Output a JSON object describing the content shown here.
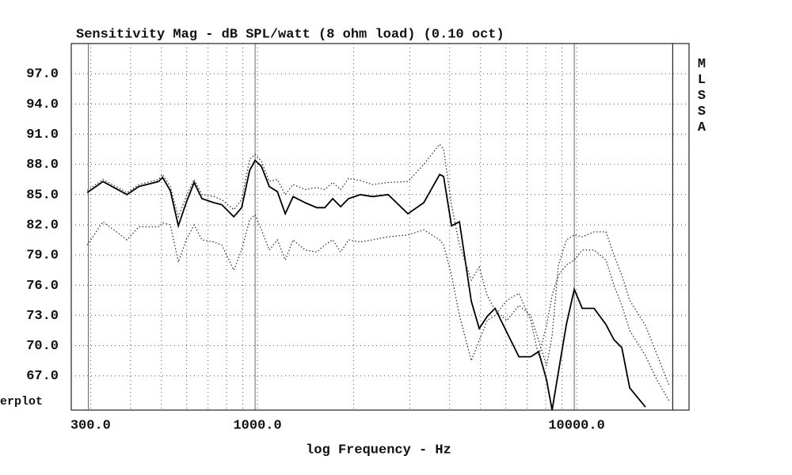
{
  "chart_data": {
    "type": "line",
    "title": "Sensitivity Mag - dB SPL/watt (8 ohm load) (0.10 oct)",
    "x_label": "log Frequency - Hz",
    "side_label": "MLSSA",
    "corner_label": "erplot",
    "log_x": true,
    "grid": true,
    "xlim": [
      261,
      22500
    ],
    "ylim": [
      63.6,
      100
    ],
    "xticks": [
      {
        "value": 300,
        "label": "300.0"
      },
      {
        "value": 1000,
        "label": "1000.0"
      },
      {
        "value": 10000,
        "label": "10000.0"
      }
    ],
    "xgrid": [
      300,
      400,
      500,
      600,
      700,
      800,
      900,
      1000,
      2000,
      3000,
      4000,
      5000,
      6000,
      7000,
      8000,
      9000,
      10000,
      20000
    ],
    "yticks": [
      {
        "value": 67,
        "label": "67.0"
      },
      {
        "value": 70,
        "label": "70.0"
      },
      {
        "value": 73,
        "label": "73.0"
      },
      {
        "value": 76,
        "label": "76.0"
      },
      {
        "value": 79,
        "label": "79.0"
      },
      {
        "value": 82,
        "label": "82.0"
      },
      {
        "value": 85,
        "label": "85.0"
      },
      {
        "value": 88,
        "label": "88.0"
      },
      {
        "value": 91,
        "label": "91.0"
      },
      {
        "value": 94,
        "label": "94.0"
      },
      {
        "value": 97,
        "label": "97.0"
      }
    ],
    "x": [
      293,
      328,
      390,
      425,
      490,
      504,
      533,
      565,
      598,
      633,
      670,
      730,
      773,
      843,
      892,
      945,
      983,
      1029,
      1089,
      1154,
      1222,
      1293,
      1409,
      1535,
      1625,
      1721,
      1822,
      1929,
      2102,
      2290,
      2567,
      2961,
      3320,
      3722,
      3830,
      4055,
      4294,
      4677,
      4953,
      5244,
      5552,
      6050,
      6593,
      7182,
      7602,
      8049,
      8378,
      8771,
      9284,
      9830,
      10408,
      11339,
      12356,
      13084,
      13851,
      14669,
      16437,
      17917,
      19516
    ],
    "series": [
      {
        "color": "#000000",
        "style": "solid",
        "values": [
          85.2,
          86.3,
          85.0,
          85.8,
          86.3,
          86.7,
          85.4,
          81.9,
          84.2,
          86.2,
          84.6,
          84.2,
          84.0,
          82.8,
          83.7,
          87.4,
          88.4,
          87.8,
          85.8,
          85.3,
          83.1,
          84.8,
          84.2,
          83.7,
          83.7,
          84.6,
          83.8,
          84.6,
          85.0,
          84.8,
          85.0,
          83.1,
          84.2,
          87.0,
          86.8,
          81.9,
          82.3,
          74.4,
          71.7,
          72.9,
          73.7,
          71.3,
          68.9,
          68.9,
          69.4,
          66.6,
          63.6,
          67.4,
          72.1,
          75.6,
          73.7,
          73.7,
          72.1,
          70.6,
          69.8,
          65.8,
          63.9,
          null,
          null
        ]
      },
      {
        "color": "#333333",
        "style": "dotted",
        "values": [
          85.4,
          86.5,
          85.2,
          86.0,
          86.5,
          87.0,
          85.8,
          82.8,
          84.8,
          86.5,
          85.0,
          84.8,
          84.5,
          83.5,
          84.5,
          88.5,
          89.0,
          88.3,
          86.3,
          86.5,
          85.0,
          86.0,
          85.5,
          85.7,
          85.5,
          86.2,
          85.5,
          86.6,
          86.4,
          86.0,
          86.2,
          86.3,
          88.0,
          90.0,
          89.5,
          84.0,
          80.0,
          76.5,
          77.8,
          75.0,
          73.5,
          72.5,
          74.0,
          73.0,
          70.5,
          68.0,
          71.0,
          78.0,
          80.5,
          81.0,
          80.8,
          81.3,
          81.3,
          79.0,
          77.0,
          74.5,
          72.0,
          69.0,
          66.0
        ]
      },
      {
        "color": "#333333",
        "style": "dotted",
        "values": [
          80.0,
          82.3,
          80.5,
          81.8,
          81.8,
          82.2,
          82.0,
          78.3,
          80.5,
          82.0,
          80.5,
          80.3,
          80.0,
          77.5,
          79.5,
          82.5,
          83.0,
          81.5,
          79.5,
          80.5,
          78.5,
          80.5,
          79.5,
          79.3,
          80.0,
          80.5,
          79.3,
          80.5,
          80.3,
          80.5,
          80.8,
          81.0,
          81.5,
          80.5,
          80.0,
          77.0,
          73.0,
          68.5,
          70.5,
          72.5,
          73.0,
          74.5,
          75.2,
          72.5,
          69.0,
          72.0,
          75.0,
          77.0,
          78.0,
          78.5,
          79.5,
          79.5,
          78.5,
          76.0,
          74.0,
          71.5,
          69.0,
          66.5,
          64.5
        ]
      }
    ]
  }
}
